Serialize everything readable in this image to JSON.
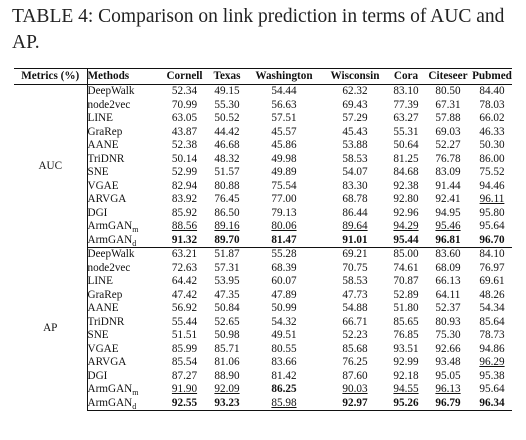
{
  "caption": "TABLE 4: Comparison on link prediction in terms of AUC and AP.",
  "header": {
    "metric": "Metrics (%)",
    "methods": "Methods",
    "datasets": [
      "Cornell",
      "Texas",
      "Washington",
      "Wisconsin",
      "Cora",
      "Citeseer",
      "Pubmed"
    ]
  },
  "groups": [
    {
      "metric": "AUC",
      "rows": [
        {
          "method": "DeepWalk",
          "sub": "",
          "values": [
            "52.34",
            "49.15",
            "54.44",
            "62.32",
            "83.10",
            "80.50",
            "84.40"
          ],
          "bold": [],
          "underline": []
        },
        {
          "method": "node2vec",
          "sub": "",
          "values": [
            "70.99",
            "55.30",
            "56.63",
            "69.43",
            "77.39",
            "67.31",
            "78.03"
          ],
          "bold": [],
          "underline": []
        },
        {
          "method": "LINE",
          "sub": "",
          "values": [
            "63.05",
            "50.52",
            "57.51",
            "57.29",
            "63.27",
            "57.88",
            "66.02"
          ],
          "bold": [],
          "underline": []
        },
        {
          "method": "GraRep",
          "sub": "",
          "values": [
            "43.87",
            "44.42",
            "45.57",
            "45.43",
            "55.31",
            "69.03",
            "46.33"
          ],
          "bold": [],
          "underline": []
        },
        {
          "method": "AANE",
          "sub": "",
          "values": [
            "52.38",
            "46.68",
            "45.86",
            "53.88",
            "50.64",
            "52.27",
            "50.30"
          ],
          "bold": [],
          "underline": []
        },
        {
          "method": "TriDNR",
          "sub": "",
          "values": [
            "50.14",
            "48.32",
            "49.98",
            "58.53",
            "81.25",
            "76.78",
            "86.00"
          ],
          "bold": [],
          "underline": []
        },
        {
          "method": "SNE",
          "sub": "",
          "values": [
            "52.99",
            "51.57",
            "49.89",
            "54.07",
            "84.68",
            "83.09",
            "75.52"
          ],
          "bold": [],
          "underline": []
        },
        {
          "method": "VGAE",
          "sub": "",
          "values": [
            "82.94",
            "80.88",
            "75.54",
            "83.30",
            "92.38",
            "91.44",
            "94.46"
          ],
          "bold": [],
          "underline": []
        },
        {
          "method": "ARVGA",
          "sub": "",
          "values": [
            "83.92",
            "76.45",
            "77.00",
            "68.78",
            "92.80",
            "92.41",
            "96.11"
          ],
          "bold": [],
          "underline": [
            6
          ]
        },
        {
          "method": "DGI",
          "sub": "",
          "values": [
            "85.92",
            "86.50",
            "79.13",
            "86.44",
            "92.96",
            "94.95",
            "95.80"
          ],
          "bold": [],
          "underline": []
        },
        {
          "method": "ArmGAN",
          "sub": "m",
          "values": [
            "88.56",
            "89.16",
            "80.06",
            "89.64",
            "94.29",
            "95.46",
            "95.64"
          ],
          "bold": [],
          "underline": [
            0,
            1,
            2,
            3,
            4,
            5
          ]
        },
        {
          "method": "ArmGAN",
          "sub": "d",
          "values": [
            "91.32",
            "89.70",
            "81.47",
            "91.01",
            "95.44",
            "96.81",
            "96.70"
          ],
          "bold": [
            0,
            1,
            2,
            3,
            4,
            5,
            6
          ],
          "underline": []
        }
      ]
    },
    {
      "metric": "AP",
      "rows": [
        {
          "method": "DeepWalk",
          "sub": "",
          "values": [
            "63.21",
            "51.87",
            "55.28",
            "69.21",
            "85.00",
            "83.60",
            "84.10"
          ],
          "bold": [],
          "underline": []
        },
        {
          "method": "node2vec",
          "sub": "",
          "values": [
            "72.63",
            "57.31",
            "68.39",
            "70.75",
            "74.61",
            "68.09",
            "76.97"
          ],
          "bold": [],
          "underline": []
        },
        {
          "method": "LINE",
          "sub": "",
          "values": [
            "64.42",
            "53.95",
            "60.07",
            "58.53",
            "70.87",
            "66.13",
            "69.61"
          ],
          "bold": [],
          "underline": []
        },
        {
          "method": "GraRep",
          "sub": "",
          "values": [
            "47.42",
            "47.35",
            "47.89",
            "47.73",
            "52.89",
            "64.11",
            "48.26"
          ],
          "bold": [],
          "underline": []
        },
        {
          "method": "AANE",
          "sub": "",
          "values": [
            "56.92",
            "50.84",
            "50.99",
            "54.88",
            "51.80",
            "52.37",
            "54.34"
          ],
          "bold": [],
          "underline": []
        },
        {
          "method": "TriDNR",
          "sub": "",
          "values": [
            "55.44",
            "52.65",
            "54.32",
            "66.71",
            "85.65",
            "80.93",
            "85.64"
          ],
          "bold": [],
          "underline": []
        },
        {
          "method": "SNE",
          "sub": "",
          "values": [
            "51.51",
            "50.98",
            "49.51",
            "52.23",
            "76.85",
            "75.30",
            "78.73"
          ],
          "bold": [],
          "underline": []
        },
        {
          "method": "VGAE",
          "sub": "",
          "values": [
            "85.99",
            "85.71",
            "80.55",
            "85.68",
            "93.51",
            "92.66",
            "94.86"
          ],
          "bold": [],
          "underline": []
        },
        {
          "method": "ARVGA",
          "sub": "",
          "values": [
            "85.54",
            "81.06",
            "83.66",
            "76.25",
            "92.99",
            "93.48",
            "96.29"
          ],
          "bold": [],
          "underline": [
            6
          ]
        },
        {
          "method": "DGI",
          "sub": "",
          "values": [
            "87.27",
            "88.90",
            "81.42",
            "87.60",
            "92.18",
            "95.05",
            "95.38"
          ],
          "bold": [],
          "underline": []
        },
        {
          "method": "ArmGAN",
          "sub": "m",
          "values": [
            "91.90",
            "92.09",
            "86.25",
            "90.03",
            "94.55",
            "96.13",
            "95.64"
          ],
          "bold": [
            2
          ],
          "underline": [
            0,
            1,
            3,
            4,
            5
          ]
        },
        {
          "method": "ArmGAN",
          "sub": "d",
          "values": [
            "92.55",
            "93.23",
            "85.98",
            "92.97",
            "95.26",
            "96.79",
            "96.34"
          ],
          "bold": [
            0,
            1,
            3,
            4,
            5,
            6
          ],
          "underline": [
            2
          ]
        }
      ]
    }
  ]
}
